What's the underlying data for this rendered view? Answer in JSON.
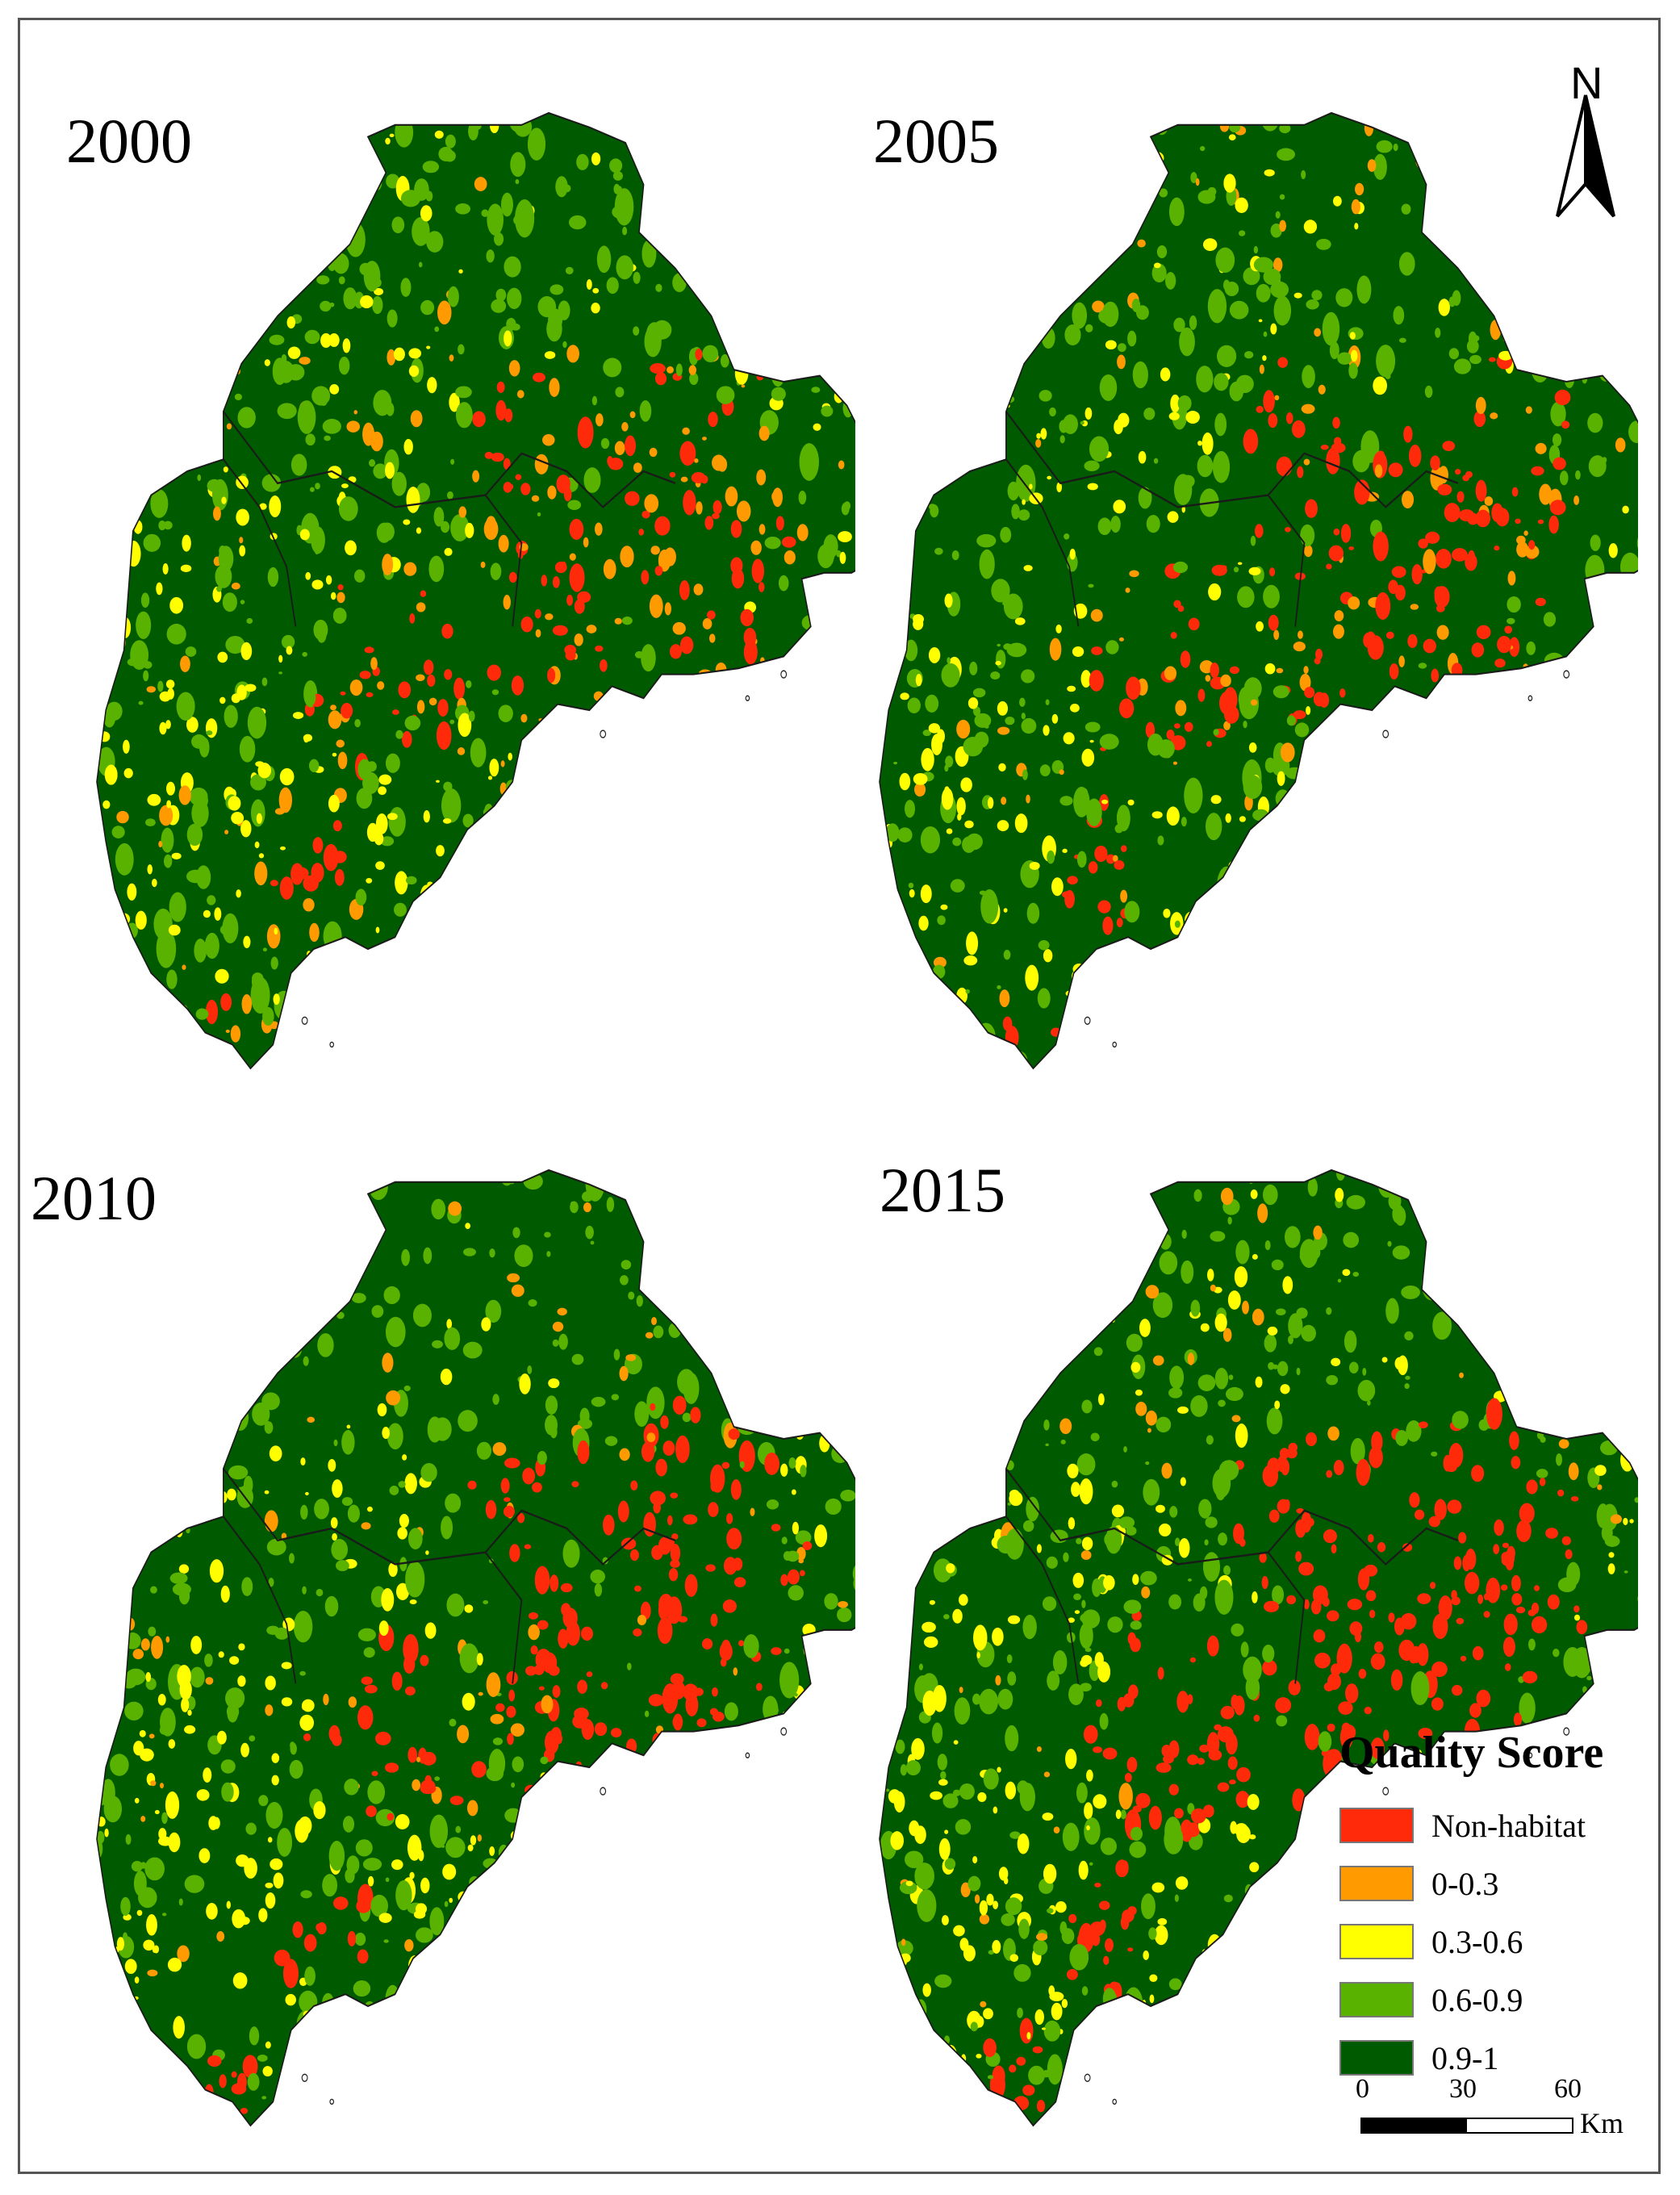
{
  "panels": [
    {
      "year": "2000"
    },
    {
      "year": "2005"
    },
    {
      "year": "2010"
    },
    {
      "year": "2015"
    }
  ],
  "north_arrow": {
    "label": "N"
  },
  "legend": {
    "title": "Quality Score",
    "items": [
      {
        "label": "Non-habitat",
        "color": "#ff2a0a"
      },
      {
        "label": "0-0.3",
        "color": "#ff9a00"
      },
      {
        "label": "0.3-0.6",
        "color": "#ffff00"
      },
      {
        "label": "0.6-0.9",
        "color": "#5ab200"
      },
      {
        "label": "0.9-1",
        "color": "#005a00"
      }
    ]
  },
  "scale_bar": {
    "ticks": [
      "0",
      "30",
      "60"
    ],
    "unit": "Km"
  },
  "colors": {
    "frame": "#555555",
    "boundary": "#1a1a1a"
  }
}
